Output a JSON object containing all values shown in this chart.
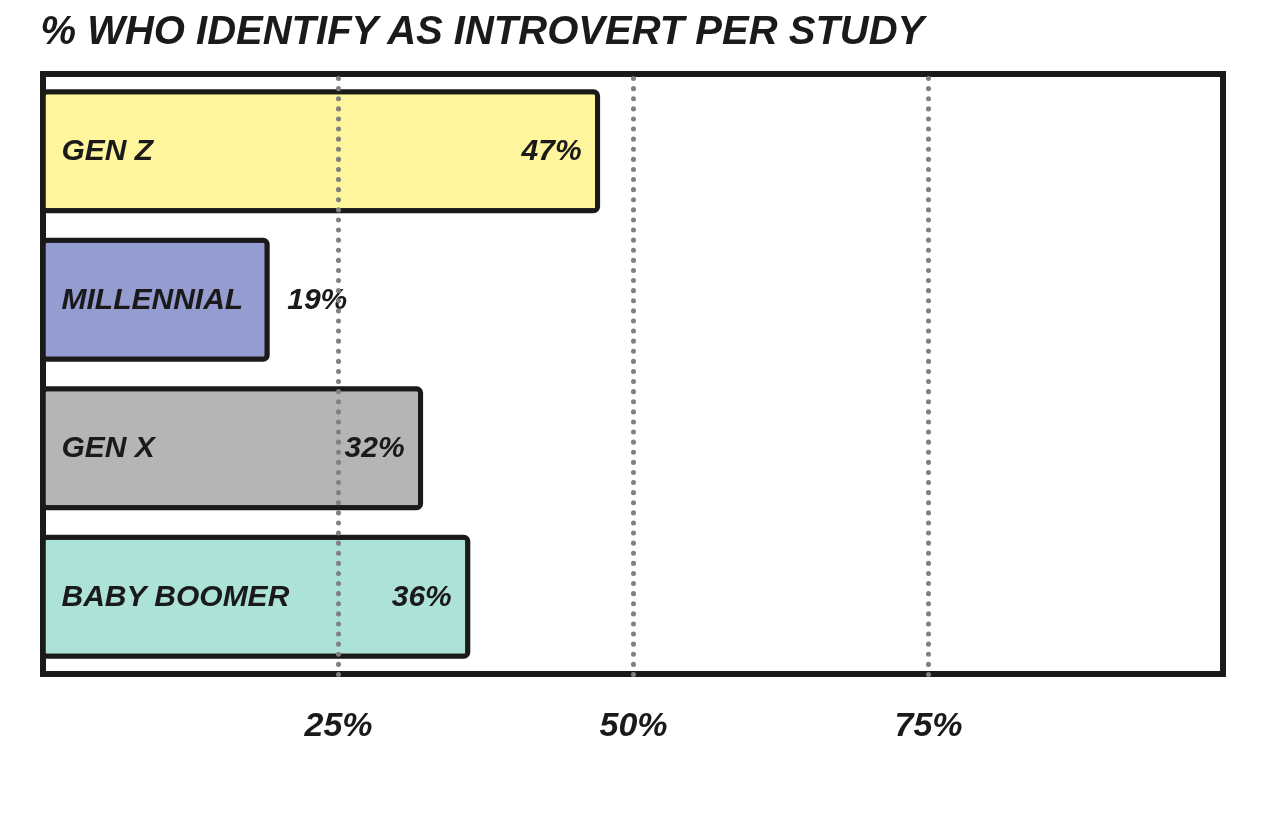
{
  "chart_data": {
    "type": "bar",
    "orientation": "horizontal",
    "title": "% WHO IDENTIFY AS INTROVERT PER STUDY",
    "categories": [
      "GEN Z",
      "MILLENNIAL",
      "GEN X",
      "BABY BOOMER"
    ],
    "values": [
      47,
      19,
      32,
      36
    ],
    "colors": [
      "#fff59d",
      "#959dd0",
      "#b5b5b5",
      "#ade2d9"
    ],
    "value_labels": [
      "47%",
      "19%",
      "32%",
      "36%"
    ],
    "xlim": [
      0,
      100
    ],
    "xticks": [
      {
        "value": 25,
        "label": "25%"
      },
      {
        "value": 50,
        "label": "50%"
      },
      {
        "value": 75,
        "label": "75%"
      }
    ],
    "grid": "x"
  }
}
